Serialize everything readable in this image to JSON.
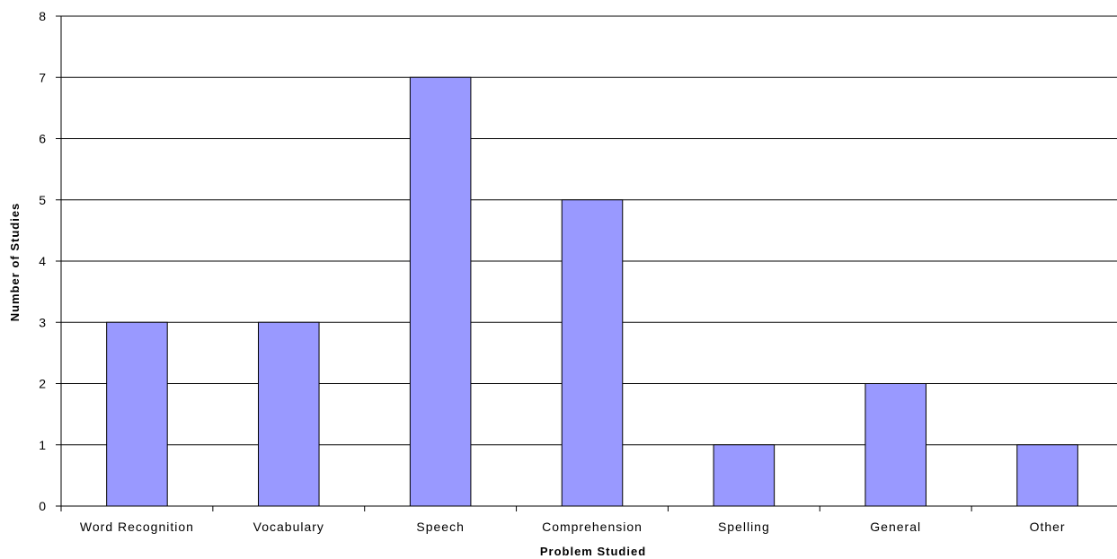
{
  "chart_data": {
    "type": "bar",
    "categories": [
      "Word Recognition",
      "Vocabulary",
      "Speech",
      "Comprehension",
      "Spelling",
      "General",
      "Other"
    ],
    "values": [
      3,
      3,
      7,
      5,
      1,
      2,
      1
    ],
    "title": "",
    "xlabel": "Problem Studied",
    "ylabel": "Number of Studies",
    "ylim": [
      0,
      8
    ],
    "yticks": [
      0,
      1,
      2,
      3,
      4,
      5,
      6,
      7,
      8
    ],
    "grid": true,
    "legend": "none",
    "bar_color": "#9999ff",
    "bar_edge_color": "#000000"
  }
}
